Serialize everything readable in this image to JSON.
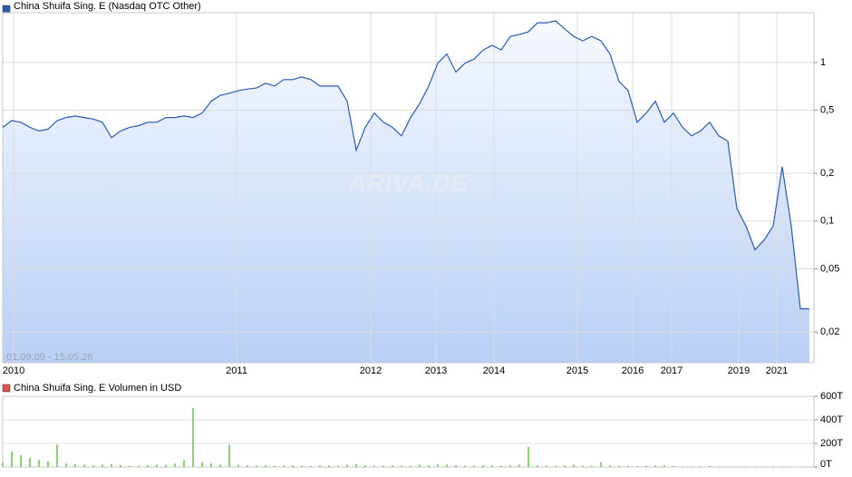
{
  "chart_data": [
    {
      "type": "line",
      "legend": "China Shuifa Sing. E (Nasdaq OTC Other)",
      "date_range": "01.09.09 - 15.05.26",
      "watermark": "ARIVA.DE",
      "log_scale": true,
      "grid": true,
      "color": "#2a5cb0",
      "xlim": [
        0,
        89.5
      ],
      "xticks": [
        {
          "value": 1.2,
          "label": "2010"
        },
        {
          "value": 25.8,
          "label": "2011"
        },
        {
          "value": 40.6,
          "label": "2012"
        },
        {
          "value": 47.8,
          "label": "2013"
        },
        {
          "value": 54.2,
          "label": "2014"
        },
        {
          "value": 63.4,
          "label": "2015"
        },
        {
          "value": 69.5,
          "label": "2016"
        },
        {
          "value": 73.8,
          "label": "2017"
        },
        {
          "value": 81.2,
          "label": "2019"
        },
        {
          "value": 85.4,
          "label": "2021"
        }
      ],
      "ylim": [
        0.0128,
        2.06
      ],
      "yticks": [
        1,
        {
          "value": 0.5,
          "label": "0,5"
        },
        {
          "value": 0.2,
          "label": "0,2"
        },
        {
          "value": 0.1,
          "label": "0,1"
        },
        {
          "value": 0.05,
          "label": "0,05"
        },
        {
          "value": 0.02,
          "label": "0,02"
        }
      ],
      "values": [
        0.39,
        0.43,
        0.42,
        0.39,
        0.37,
        0.38,
        0.43,
        0.45,
        0.46,
        0.45,
        0.44,
        0.42,
        0.336,
        0.37,
        0.39,
        0.4,
        0.42,
        0.42,
        0.45,
        0.45,
        0.46,
        0.45,
        0.48,
        0.57,
        0.62,
        0.64,
        0.665,
        0.68,
        0.69,
        0.74,
        0.71,
        0.78,
        0.78,
        0.81,
        0.78,
        0.71,
        0.71,
        0.71,
        0.57,
        0.28,
        0.39,
        0.48,
        0.42,
        0.39,
        0.345,
        0.45,
        0.55,
        0.71,
        0.99,
        1.13,
        0.87,
        0.99,
        1.05,
        1.2,
        1.28,
        1.2,
        1.46,
        1.5,
        1.56,
        1.78,
        1.78,
        1.83,
        1.63,
        1.46,
        1.37,
        1.46,
        1.37,
        1.13,
        0.76,
        0.665,
        0.42,
        0.48,
        0.57,
        0.42,
        0.48,
        0.39,
        0.345,
        0.37,
        0.42,
        0.345,
        0.32,
        0.12,
        0.093,
        0.066,
        0.076,
        0.093,
        0.22,
        0.093,
        0.028,
        0.028
      ]
    },
    {
      "type": "bar",
      "legend": "China Shuifa Sing. E Volumen in USD",
      "grid": true,
      "color": "#6cbf4f",
      "xlim": [
        0,
        89.5
      ],
      "ylim": [
        0,
        600000
      ],
      "yticks": [
        {
          "value": 600000,
          "label": "600T"
        },
        {
          "value": 400000,
          "label": "400T"
        },
        {
          "value": 200000,
          "label": "200T"
        },
        {
          "value": 0,
          "label": "0T"
        }
      ],
      "values": [
        40000,
        130000,
        100000,
        80000,
        60000,
        50000,
        190000,
        30000,
        25000,
        20000,
        15000,
        20000,
        25000,
        15000,
        10000,
        12000,
        15000,
        20000,
        18000,
        30000,
        60000,
        500000,
        40000,
        30000,
        20000,
        190000,
        20000,
        15000,
        12000,
        15000,
        10000,
        12000,
        15000,
        10000,
        8000,
        12000,
        15000,
        10000,
        20000,
        25000,
        15000,
        12000,
        10000,
        15000,
        12000,
        10000,
        20000,
        15000,
        25000,
        20000,
        15000,
        12000,
        10000,
        15000,
        12000,
        10000,
        15000,
        20000,
        170000,
        15000,
        12000,
        10000,
        15000,
        20000,
        12000,
        10000,
        40000,
        15000,
        12000,
        10000,
        8000,
        10000,
        12000,
        15000,
        8000,
        6000,
        5000,
        6000,
        8000,
        5000,
        4000,
        3000,
        5000,
        4000,
        3000,
        6000,
        5000,
        3000,
        2000,
        2000
      ]
    }
  ]
}
